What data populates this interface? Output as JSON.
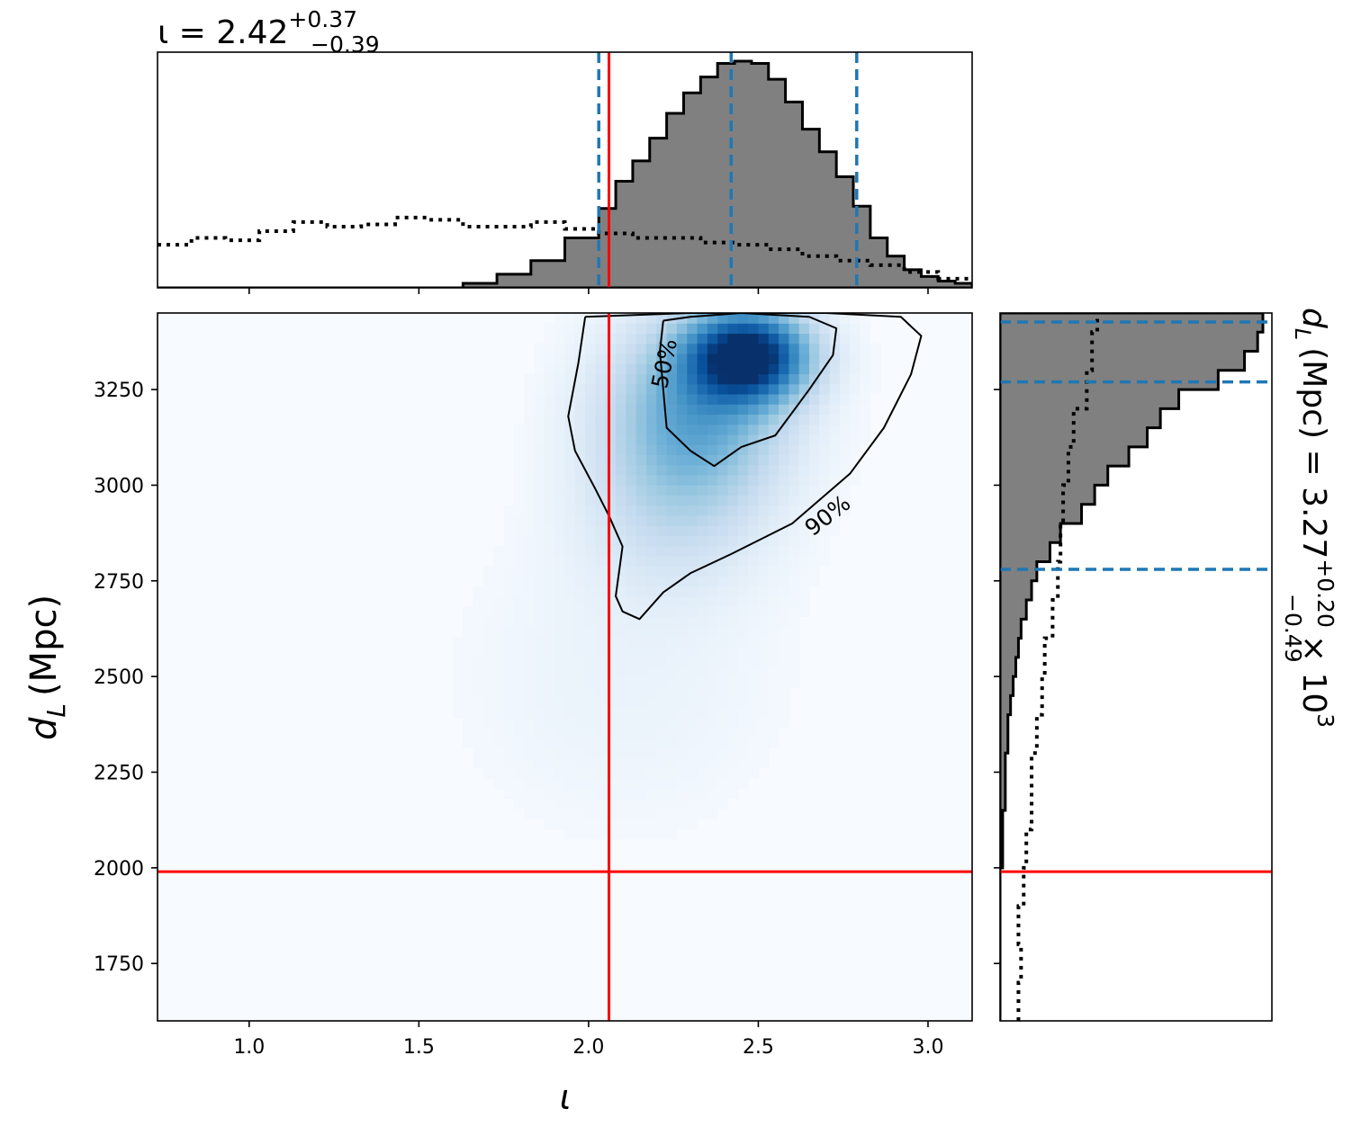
{
  "chart_data": {
    "type": "corner",
    "colors": {
      "density_cmap": "Blues",
      "posterior_hist_fill": "#808080",
      "posterior_hist_edge": "#000000",
      "prior_line": "#000000",
      "quantile_lines": "#1f77b4",
      "truth_lines": "#ff0000",
      "contours": "#000000"
    },
    "x_param": {
      "symbol": "ι",
      "axis_label": "ι",
      "range": [
        0.73,
        3.13
      ],
      "ticks": [
        1.0,
        1.5,
        2.0,
        2.5,
        3.0
      ],
      "tick_labels": [
        "1.0",
        "1.5",
        "2.0",
        "2.5",
        "3.0"
      ],
      "truth": 2.06,
      "quantiles": [
        2.03,
        2.42,
        2.79
      ],
      "summary": {
        "lhs": "ι = 2.42",
        "sup": "+0.37",
        "sub": "−0.39"
      }
    },
    "y_param": {
      "axis_label_main": "d",
      "axis_label_sub": "L",
      "axis_label_rest": "(Mpc)",
      "range": [
        1600,
        3450
      ],
      "ticks": [
        1750,
        2000,
        2250,
        2500,
        2750,
        3000,
        3250
      ],
      "tick_labels": [
        "1750",
        "2000",
        "2250",
        "2500",
        "2750",
        "3000",
        "3250"
      ],
      "truth": 1990,
      "quantiles": [
        2780,
        3270,
        3470
      ],
      "summary": {
        "lhs_main": "d",
        "lhs_sub": "L",
        "lhs_rest": "(Mpc) = 3.27",
        "sup": "+0.20",
        "sub": "−0.49",
        "tail": "× 10",
        "exp": "3"
      }
    },
    "x_marginal": {
      "bin_edges": [
        0.73,
        0.83,
        0.93,
        1.03,
        1.13,
        1.23,
        1.33,
        1.43,
        1.53,
        1.63,
        1.73,
        1.83,
        1.93,
        2.03,
        2.08,
        2.13,
        2.18,
        2.23,
        2.28,
        2.33,
        2.38,
        2.43,
        2.48,
        2.53,
        2.58,
        2.63,
        2.68,
        2.73,
        2.78,
        2.83,
        2.88,
        2.93,
        2.98,
        3.03,
        3.08,
        3.13
      ],
      "posterior_counts": [
        0,
        0,
        0,
        0,
        0,
        0,
        0,
        0,
        0,
        0.02,
        0.06,
        0.12,
        0.22,
        0.35,
        0.47,
        0.56,
        0.66,
        0.77,
        0.86,
        0.93,
        0.99,
        1.0,
        0.99,
        0.92,
        0.82,
        0.7,
        0.6,
        0.49,
        0.36,
        0.22,
        0.14,
        0.08,
        0.05,
        0.03,
        0.02
      ],
      "prior_x": [
        0.73,
        0.83,
        0.93,
        1.03,
        1.13,
        1.23,
        1.33,
        1.43,
        1.53,
        1.63,
        1.73,
        1.83,
        1.93,
        2.03,
        2.13,
        2.23,
        2.33,
        2.43,
        2.53,
        2.63,
        2.73,
        2.83,
        2.93,
        3.03,
        3.13
      ],
      "prior_density": [
        0.19,
        0.22,
        0.21,
        0.25,
        0.29,
        0.27,
        0.28,
        0.31,
        0.3,
        0.27,
        0.27,
        0.29,
        0.26,
        0.24,
        0.22,
        0.22,
        0.2,
        0.19,
        0.17,
        0.14,
        0.12,
        0.1,
        0.07,
        0.04,
        0.02
      ]
    },
    "y_marginal": {
      "bin_edges": [
        1600,
        1650,
        1700,
        1750,
        1800,
        1850,
        1900,
        1950,
        2000,
        2050,
        2100,
        2150,
        2200,
        2250,
        2300,
        2350,
        2400,
        2450,
        2500,
        2550,
        2600,
        2650,
        2700,
        2750,
        2800,
        2850,
        2900,
        2950,
        3000,
        3050,
        3100,
        3150,
        3200,
        3250,
        3300,
        3350,
        3400,
        3450
      ],
      "posterior_counts": [
        0,
        0,
        0,
        0,
        0,
        0,
        0,
        0,
        0.01,
        0.01,
        0.01,
        0.02,
        0.02,
        0.02,
        0.03,
        0.03,
        0.04,
        0.05,
        0.06,
        0.07,
        0.08,
        0.1,
        0.12,
        0.14,
        0.19,
        0.23,
        0.31,
        0.36,
        0.41,
        0.49,
        0.56,
        0.61,
        0.68,
        0.83,
        0.93,
        0.98,
        1.0
      ],
      "prior_y": [
        1600,
        1700,
        1800,
        1900,
        2000,
        2100,
        2200,
        2300,
        2400,
        2500,
        2600,
        2700,
        2800,
        2900,
        3000,
        3100,
        3200,
        3300,
        3400,
        3450
      ],
      "prior_density": [
        0.07,
        0.08,
        0.07,
        0.09,
        0.1,
        0.12,
        0.12,
        0.14,
        0.16,
        0.17,
        0.2,
        0.22,
        0.23,
        0.24,
        0.26,
        0.28,
        0.33,
        0.35,
        0.37,
        0.37
      ]
    },
    "density_2d": {
      "components": [
        {
          "x": 2.47,
          "y": 3340,
          "sx": 0.12,
          "sy": 80,
          "w": 1.0
        },
        {
          "x": 2.32,
          "y": 3200,
          "sx": 0.18,
          "sy": 160,
          "w": 0.45
        },
        {
          "x": 2.25,
          "y": 2950,
          "sx": 0.18,
          "sy": 160,
          "w": 0.16
        },
        {
          "x": 2.1,
          "y": 2500,
          "sx": 0.3,
          "sy": 260,
          "w": 0.04
        }
      ]
    },
    "contours": [
      {
        "label": "50%",
        "path": [
          [
            2.22,
            3430
          ],
          [
            2.3,
            3440
          ],
          [
            2.45,
            3450
          ],
          [
            2.65,
            3440
          ],
          [
            2.73,
            3410
          ],
          [
            2.72,
            3340
          ],
          [
            2.65,
            3250
          ],
          [
            2.55,
            3130
          ],
          [
            2.45,
            3100
          ],
          [
            2.37,
            3050
          ],
          [
            2.3,
            3090
          ],
          [
            2.23,
            3150
          ],
          [
            2.22,
            3250
          ],
          [
            2.21,
            3350
          ],
          [
            2.22,
            3430
          ]
        ]
      },
      {
        "label": "90%",
        "path": [
          [
            1.99,
            3440
          ],
          [
            2.3,
            3450
          ],
          [
            2.7,
            3450
          ],
          [
            2.92,
            3440
          ],
          [
            2.98,
            3390
          ],
          [
            2.95,
            3290
          ],
          [
            2.87,
            3150
          ],
          [
            2.77,
            3030
          ],
          [
            2.6,
            2900
          ],
          [
            2.42,
            2820
          ],
          [
            2.3,
            2770
          ],
          [
            2.22,
            2720
          ],
          [
            2.15,
            2650
          ],
          [
            2.1,
            2670
          ],
          [
            2.08,
            2710
          ],
          [
            2.1,
            2840
          ],
          [
            2.06,
            2920
          ],
          [
            2.02,
            2990
          ],
          [
            1.96,
            3090
          ],
          [
            1.94,
            3180
          ],
          [
            1.97,
            3320
          ],
          [
            1.99,
            3440
          ]
        ]
      }
    ]
  }
}
